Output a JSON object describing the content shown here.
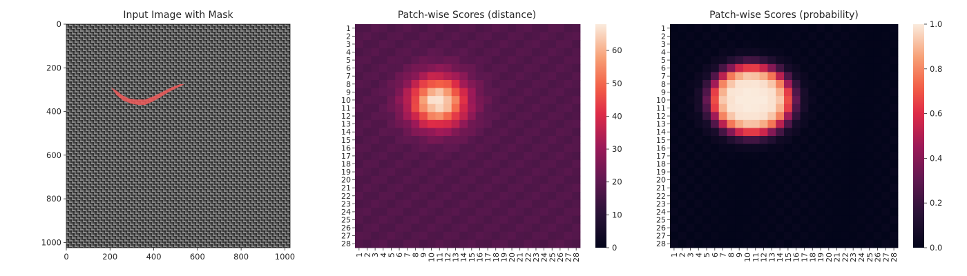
{
  "chart_data": [
    {
      "type": "image",
      "title": "Input Image with Mask",
      "xlim": [
        0,
        1024
      ],
      "ylim": [
        1024,
        0
      ],
      "xticks": [
        0,
        200,
        400,
        600,
        800,
        1000
      ],
      "yticks": [
        0,
        200,
        400,
        600,
        800,
        1000
      ],
      "xtick_labels": [
        "0",
        "200",
        "400",
        "600",
        "800",
        "1000"
      ],
      "ytick_labels": [
        "0",
        "200",
        "400",
        "600",
        "800",
        "1000"
      ],
      "background": "grey woven fabric texture",
      "mask": {
        "color": "#f05a5a",
        "outline": [
          [
            205,
            290
          ],
          [
            230,
            325
          ],
          [
            260,
            350
          ],
          [
            300,
            365
          ],
          [
            330,
            370
          ],
          [
            360,
            370
          ],
          [
            395,
            355
          ],
          [
            430,
            335
          ],
          [
            470,
            310
          ],
          [
            510,
            290
          ],
          [
            540,
            275
          ],
          [
            520,
            275
          ],
          [
            480,
            290
          ],
          [
            440,
            310
          ],
          [
            400,
            330
          ],
          [
            360,
            345
          ],
          [
            320,
            345
          ],
          [
            285,
            340
          ],
          [
            255,
            325
          ],
          [
            230,
            305
          ]
        ]
      }
    },
    {
      "type": "heatmap",
      "title": "Patch-wise Scores (distance)",
      "x_tick_labels": [
        "1",
        "2",
        "3",
        "4",
        "5",
        "6",
        "7",
        "8",
        "9",
        "10",
        "11",
        "12",
        "13",
        "14",
        "15",
        "16",
        "17",
        "18",
        "19",
        "20",
        "21",
        "22",
        "23",
        "24",
        "25",
        "26",
        "27",
        "28"
      ],
      "y_tick_labels": [
        "1",
        "2",
        "3",
        "4",
        "5",
        "6",
        "7",
        "8",
        "9",
        "10",
        "11",
        "12",
        "13",
        "14",
        "15",
        "16",
        "17",
        "18",
        "19",
        "20",
        "21",
        "22",
        "23",
        "24",
        "25",
        "26",
        "27",
        "28"
      ],
      "rows": 28,
      "cols": 28,
      "colormap": "rocket",
      "vmin": 0,
      "vmax": 68,
      "colorbar_ticks": [
        0,
        10,
        20,
        30,
        40,
        50,
        60
      ],
      "colorbar_tick_labels": [
        "0",
        "10",
        "20",
        "30",
        "40",
        "50",
        "60"
      ],
      "baseline": 18,
      "hotspot": {
        "center_row": 10.2,
        "center_col": 10.8,
        "peak": 68,
        "sigma_row": 2.3,
        "sigma_col": 2.6
      }
    },
    {
      "type": "heatmap",
      "title": "Patch-wise Scores (probability)",
      "x_tick_labels": [
        "1",
        "2",
        "3",
        "4",
        "5",
        "6",
        "7",
        "8",
        "9",
        "10",
        "11",
        "12",
        "13",
        "14",
        "15",
        "16",
        "17",
        "18",
        "19",
        "20",
        "21",
        "22",
        "23",
        "24",
        "25",
        "26",
        "27",
        "28"
      ],
      "y_tick_labels": [
        "1",
        "2",
        "3",
        "4",
        "5",
        "6",
        "7",
        "8",
        "9",
        "10",
        "11",
        "12",
        "13",
        "14",
        "15",
        "16",
        "17",
        "18",
        "19",
        "20",
        "21",
        "22",
        "23",
        "24",
        "25",
        "26",
        "27",
        "28"
      ],
      "rows": 28,
      "cols": 28,
      "colormap": "rocket",
      "vmin": 0,
      "vmax": 1,
      "colorbar_ticks": [
        0.0,
        0.2,
        0.4,
        0.6,
        0.8,
        1.0
      ],
      "colorbar_tick_labels": [
        "0.0",
        "0.2",
        "0.4",
        "0.6",
        "0.8",
        "1.0"
      ],
      "baseline": 0.0,
      "hotspot": {
        "center_row": 10.0,
        "center_col": 10.5,
        "peak": 1.0,
        "sigma_row": 2.7,
        "sigma_col": 3.1
      }
    }
  ]
}
